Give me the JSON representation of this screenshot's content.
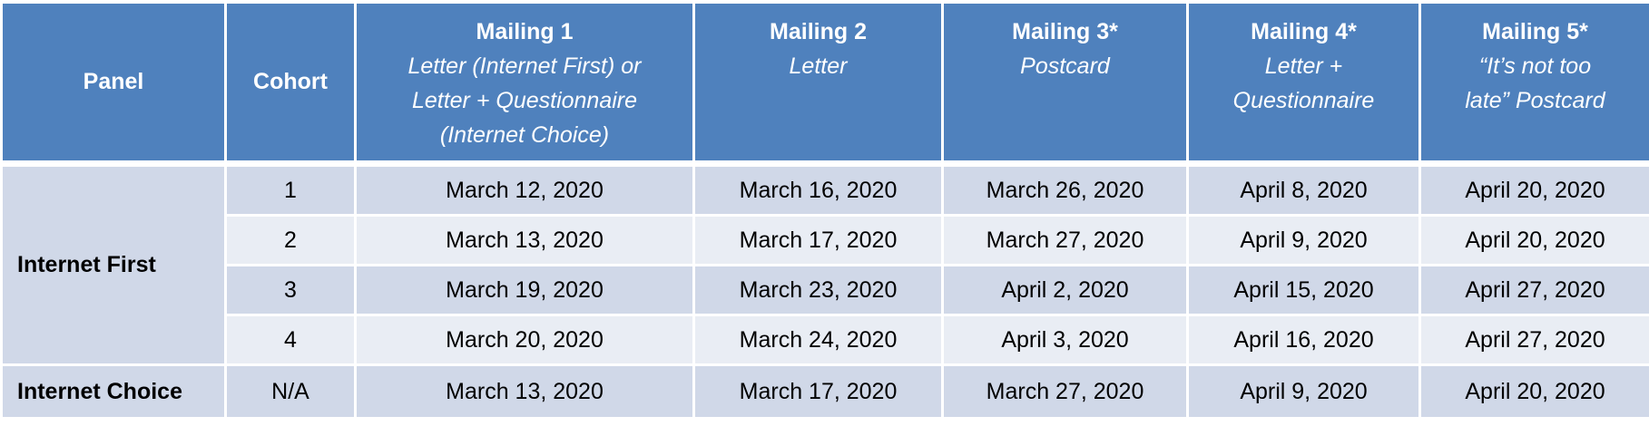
{
  "headers": {
    "panel": "Panel",
    "cohort": "Cohort",
    "mailings": [
      {
        "title": "Mailing 1",
        "subtitle_lines": [
          "Letter (Internet First) or",
          "Letter + Questionnaire",
          "(Internet Choice)"
        ]
      },
      {
        "title": "Mailing 2",
        "subtitle_lines": [
          "Letter"
        ]
      },
      {
        "title": "Mailing 3*",
        "subtitle_lines": [
          "Postcard"
        ]
      },
      {
        "title": "Mailing 4*",
        "subtitle_lines": [
          "Letter +",
          "Questionnaire"
        ]
      },
      {
        "title": "Mailing 5*",
        "subtitle_lines": [
          "“It’s not too",
          "late” Postcard"
        ]
      }
    ]
  },
  "panels": [
    {
      "name": "Internet First",
      "rows": [
        {
          "cohort": "1",
          "dates": [
            "March 12, 2020",
            "March 16, 2020",
            "March 26, 2020",
            "April 8, 2020",
            "April 20, 2020"
          ]
        },
        {
          "cohort": "2",
          "dates": [
            "March 13, 2020",
            "March 17, 2020",
            "March 27, 2020",
            "April 9, 2020",
            "April 20, 2020"
          ]
        },
        {
          "cohort": "3",
          "dates": [
            "March 19, 2020",
            "March 23, 2020",
            "April 2, 2020",
            "April 15, 2020",
            "April 27, 2020"
          ]
        },
        {
          "cohort": "4",
          "dates": [
            "March 20, 2020",
            "March 24, 2020",
            "April 3, 2020",
            "April 16, 2020",
            "April 27, 2020"
          ]
        }
      ]
    },
    {
      "name": "Internet Choice",
      "rows": [
        {
          "cohort": "N/A",
          "dates": [
            "March 13, 2020",
            "March 17, 2020",
            "March 27, 2020",
            "April 9, 2020",
            "April 20, 2020"
          ]
        }
      ]
    }
  ],
  "colors": {
    "header": "#4f81bd",
    "row_odd": "#d0d8e8",
    "row_even": "#e9edf4"
  }
}
